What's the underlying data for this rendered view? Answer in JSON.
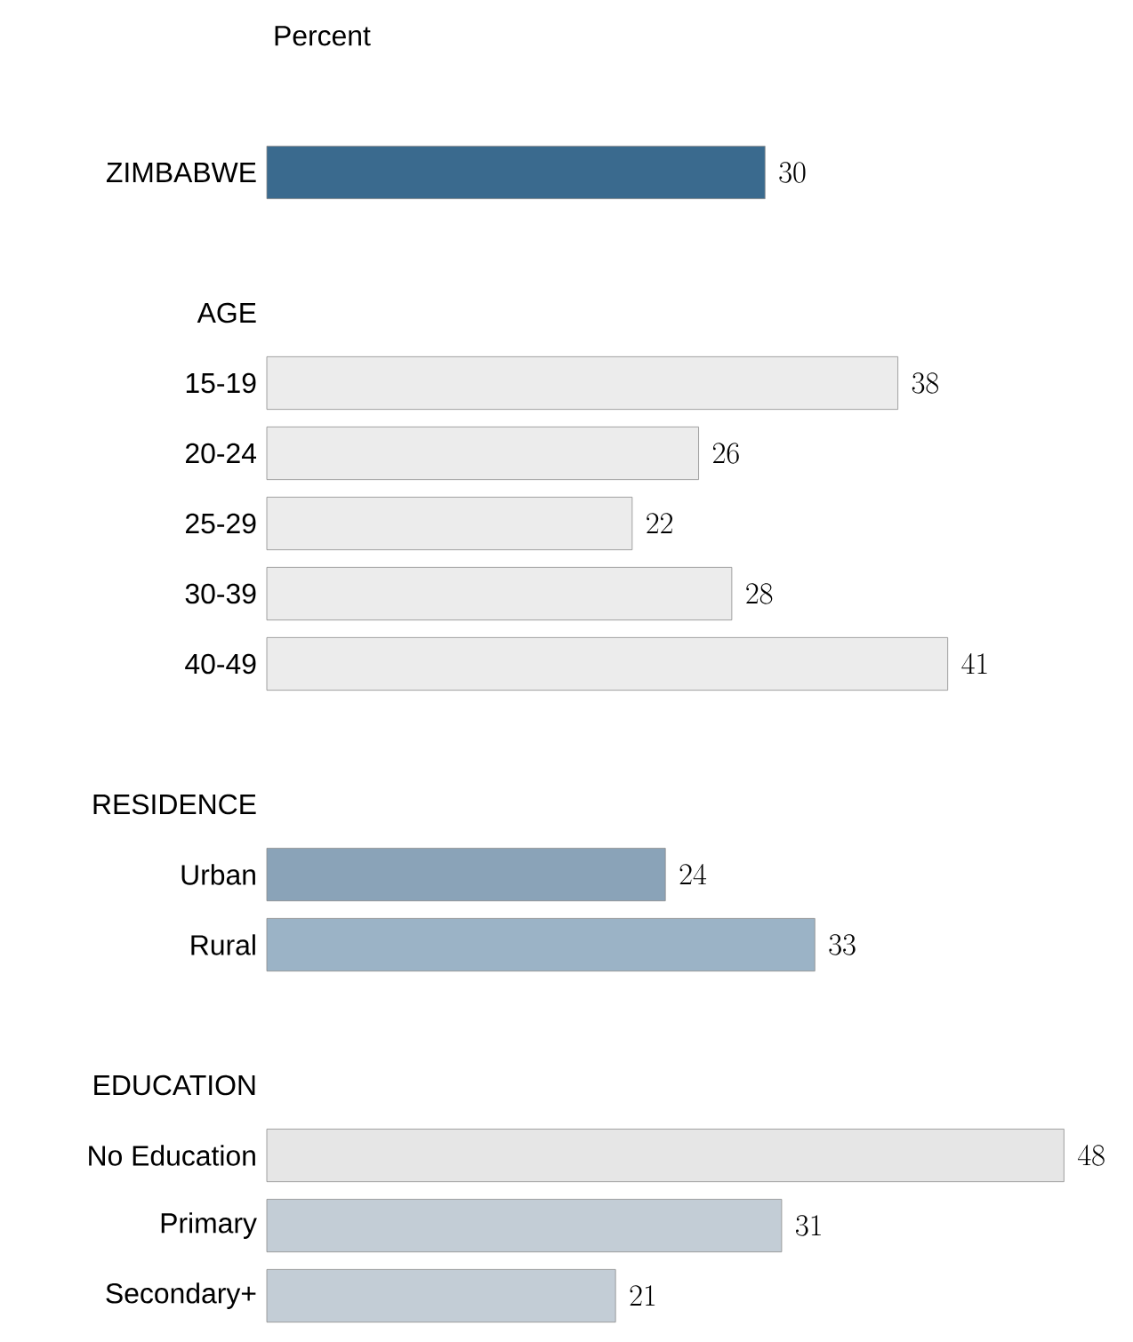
{
  "chart_data": {
    "type": "bar",
    "orientation": "horizontal",
    "xlabel": "Percent",
    "data_labels": true,
    "categories": [
      "ZIMBABWE",
      null,
      "AGE",
      "15-19",
      "20-24",
      "25-29",
      "30-39",
      "40-49",
      null,
      "RESIDENCE",
      "Urban",
      "Rural",
      null,
      "EDUCATION",
      "No Education",
      "Primary",
      "Secondary+"
    ],
    "values": [
      30,
      null,
      null,
      38,
      26,
      22,
      28,
      41,
      null,
      null,
      24,
      33,
      null,
      null,
      48,
      31,
      21
    ],
    "colors": [
      "#3a6a8e",
      null,
      null,
      "#ececec",
      "#ececec",
      "#ececec",
      "#ececec",
      "#ececec",
      null,
      null,
      "#8aa3b8",
      "#9bb3c6",
      null,
      null,
      "#e6e6e6",
      "#c3cdd6",
      "#c3cdd6"
    ]
  }
}
